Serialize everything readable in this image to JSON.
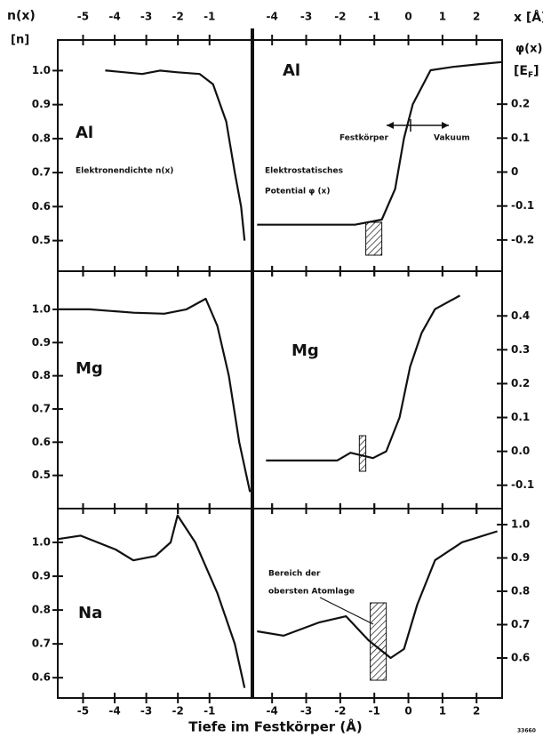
{
  "headers": {
    "left_y": "n(x)",
    "left_unit": "[n]",
    "right_y": "φ(x)",
    "right_unit_a": "[E",
    "right_unit_sub": "F",
    "right_unit_b": "]",
    "x_unit": "x [Å]",
    "xlabel": "Tiefe im Festkörper (Å)",
    "code": "33660"
  },
  "chart_data": [
    {
      "type": "line",
      "label": "Al",
      "x": [
        -4.3,
        -4.25,
        -3.13,
        -2.57,
        -2.01,
        -1.31,
        -0.89,
        -0.47,
        -0.2,
        0.0,
        0.11
      ],
      "series": [
        {
          "color": "#111111",
          "values": [
            1.0,
            1.0,
            0.99,
            1.0,
            0.995,
            0.99,
            0.96,
            0.85,
            0.7,
            0.6,
            0.5
          ]
        }
      ],
      "xlim": [
        -5.8,
        0.3
      ],
      "ylim": [
        0.41,
        1.09
      ],
      "xticks": [
        -5,
        -4,
        -3,
        -2,
        -1
      ],
      "yticks": [
        0.5,
        0.6,
        0.7,
        0.8,
        0.9,
        {
          "value": 1.0,
          "label": "1.0"
        }
      ],
      "annotations": [
        "Al",
        "Elektronendichte n(x)"
      ]
    },
    {
      "type": "line",
      "label": "Al",
      "x": [
        -4.44,
        -1.57,
        -0.78,
        -0.39,
        -0.13,
        0.13,
        0.65,
        1.31,
        2.09,
        2.74
      ],
      "series": [
        {
          "color": "#111111",
          "values": [
            -0.155,
            -0.155,
            -0.14,
            -0.05,
            0.1,
            0.2,
            0.3,
            0.31,
            0.318,
            0.324
          ]
        }
      ],
      "band": [
        -1.25,
        -0.78
      ],
      "xlim": [
        -4.5,
        2.75
      ],
      "ylim": [
        -0.292,
        0.389
      ],
      "xticks": [
        -4,
        -3,
        -2,
        -1,
        0,
        1,
        2
      ],
      "yticks": [
        -0.2,
        -0.1,
        0,
        0.1,
        0.2
      ],
      "annotations": [
        "Al",
        "Festkörper",
        "Vakuum",
        "Elektrostatisches",
        "Potential φ (x)"
      ]
    },
    {
      "type": "line",
      "label": "Mg",
      "x": [
        -5.78,
        -4.8,
        -4.1,
        -3.4,
        -2.43,
        -1.73,
        -1.12,
        -0.75,
        -0.39,
        -0.06,
        0.28
      ],
      "series": [
        {
          "color": "#111111",
          "values": [
            1.0,
            1.0,
            0.995,
            0.99,
            0.987,
            1.0,
            1.032,
            0.95,
            0.8,
            0.6,
            0.45
          ]
        }
      ],
      "xlim": [
        -5.8,
        0.3
      ],
      "ylim": [
        0.4,
        1.115
      ],
      "xticks": [
        -5,
        -4,
        -3,
        -2,
        -1
      ],
      "yticks": [
        0.5,
        0.6,
        0.7,
        0.8,
        0.9,
        {
          "value": 1.0,
          "label": "1.0"
        }
      ],
      "annotations": [
        "Mg"
      ]
    },
    {
      "type": "line",
      "label": "Mg",
      "x": [
        -4.18,
        -2.09,
        -1.7,
        -1.04,
        -0.65,
        -0.26,
        0.05,
        0.39,
        0.78,
        1.51
      ],
      "series": [
        {
          "color": "#111111",
          "values": [
            -0.027,
            -0.027,
            -0.004,
            -0.02,
            0.0,
            0.1,
            0.25,
            0.35,
            0.42,
            0.46
          ]
        }
      ],
      "band": [
        -1.44,
        -1.25
      ],
      "xlim": [
        -4.5,
        2.75
      ],
      "ylim": [
        -0.169,
        0.532
      ],
      "xticks": [
        -4,
        -3,
        -2,
        -1,
        0,
        1,
        2
      ],
      "yticks": [
        -0.1,
        {
          "value": 0,
          "label": "0.0"
        },
        0.1,
        0.2,
        0.3,
        0.4
      ],
      "annotations": [
        "Mg"
      ]
    },
    {
      "type": "line",
      "label": "Na",
      "x": [
        -5.78,
        -5.08,
        -3.97,
        -3.41,
        -2.71,
        -2.23,
        -2.01,
        -1.45,
        -0.75,
        -0.2,
        0.11
      ],
      "series": [
        {
          "color": "#111111",
          "values": [
            1.01,
            1.02,
            0.979,
            0.947,
            0.96,
            1.0,
            1.08,
            1.0,
            0.85,
            0.7,
            0.57
          ]
        }
      ],
      "xlim": [
        -5.8,
        0.3
      ],
      "ylim": [
        0.54,
        1.1
      ],
      "xticks": [
        -5,
        -4,
        -3,
        -2,
        -1
      ],
      "yticks": [
        0.6,
        0.7,
        0.8,
        0.9,
        {
          "value": 1.0,
          "label": "1.0"
        }
      ],
      "annotations": [
        "Na"
      ]
    },
    {
      "type": "line",
      "label": "Na",
      "x": [
        -4.44,
        -3.66,
        -2.61,
        -1.83,
        -1.17,
        -0.52,
        -0.13,
        0.26,
        0.78,
        1.57,
        2.61
      ],
      "series": [
        {
          "color": "#111111",
          "values": [
            0.68,
            0.667,
            0.707,
            0.725,
            0.653,
            0.6,
            0.627,
            0.76,
            0.893,
            0.947,
            0.98
          ]
        }
      ],
      "band": [
        -1.12,
        -0.65
      ],
      "xlim": [
        -4.5,
        2.75
      ],
      "ylim": [
        0.48,
        1.048
      ],
      "xticks": [
        -4,
        -3,
        -2,
        -1,
        0,
        1,
        2
      ],
      "yticks": [
        0.6,
        0.7,
        0.8,
        0.9,
        {
          "value": 1.0,
          "label": "1.0"
        }
      ],
      "annotations": [
        "Bereich der",
        "obersten Atomlage"
      ]
    }
  ]
}
